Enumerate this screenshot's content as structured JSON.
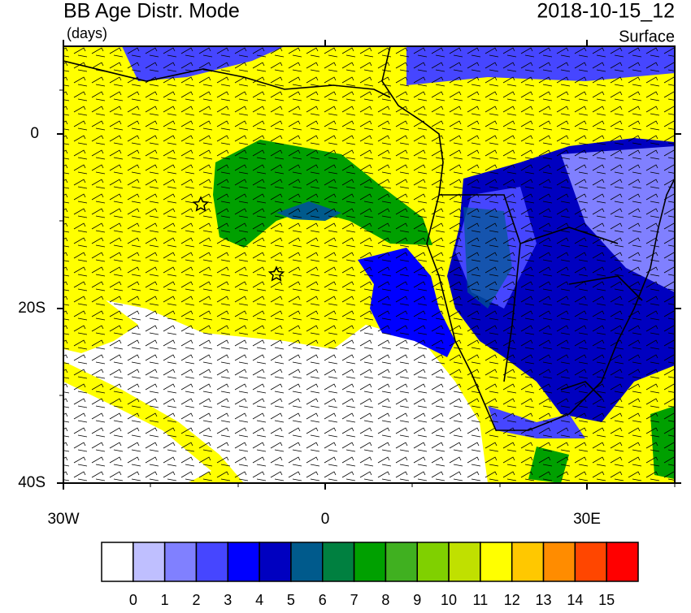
{
  "header": {
    "title": "BB Age Distr. Mode",
    "units": "(days)",
    "date": "2018-10-15_12",
    "level": "Surface"
  },
  "axes": {
    "y_labels": [
      "0",
      "20S",
      "40S"
    ],
    "x_labels": [
      "30W",
      "0",
      "30E"
    ]
  },
  "colorbar": {
    "colors": [
      "#ffffff",
      "#bfbfff",
      "#8080ff",
      "#4646ff",
      "#0000ff",
      "#0000c0",
      "#005a8c",
      "#008040",
      "#00a000",
      "#40b020",
      "#80d000",
      "#c0e000",
      "#ffff00",
      "#ffc800",
      "#ff8c00",
      "#ff4600",
      "#ff0000"
    ],
    "labels": [
      "0",
      "1",
      "2",
      "3",
      "4",
      "5",
      "6",
      "7",
      "8",
      "9",
      "10",
      "11",
      "12",
      "13",
      "14",
      "15"
    ]
  }
}
